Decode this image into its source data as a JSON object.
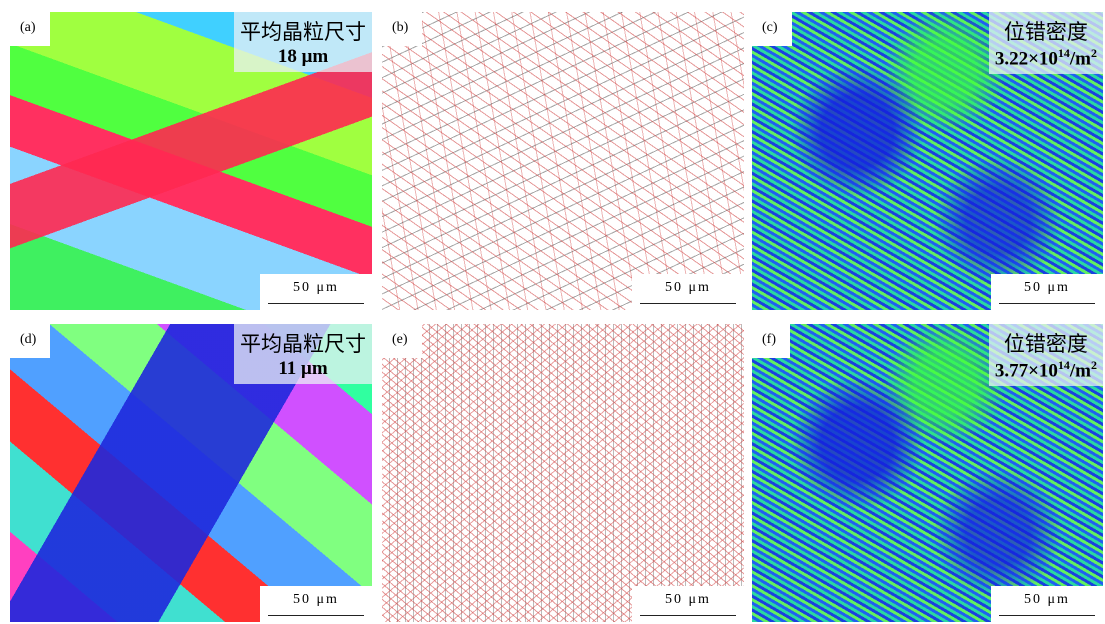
{
  "panels": [
    {
      "label": "(a)",
      "annotation": {
        "title": "平均晶粒尺寸",
        "value": "18 μm"
      },
      "scale_bar": "50 μm"
    },
    {
      "label": "(b)",
      "scale_bar": "50 μm"
    },
    {
      "label": "(c)",
      "annotation": {
        "title": "位错密度",
        "value": "3.22×10",
        "exp": "14",
        "unit": "/m",
        "unit_exp": "2"
      },
      "scale_bar": "50 μm"
    },
    {
      "label": "(d)",
      "annotation": {
        "title": "平均晶粒尺寸",
        "value": "11 μm"
      },
      "scale_bar": "50 μm"
    },
    {
      "label": "(e)",
      "scale_bar": "50 μm"
    },
    {
      "label": "(f)",
      "annotation": {
        "title": "位错密度",
        "value": "3.77×10",
        "exp": "14",
        "unit": "/m",
        "unit_exp": "2"
      },
      "scale_bar": "50 μm"
    }
  ]
}
